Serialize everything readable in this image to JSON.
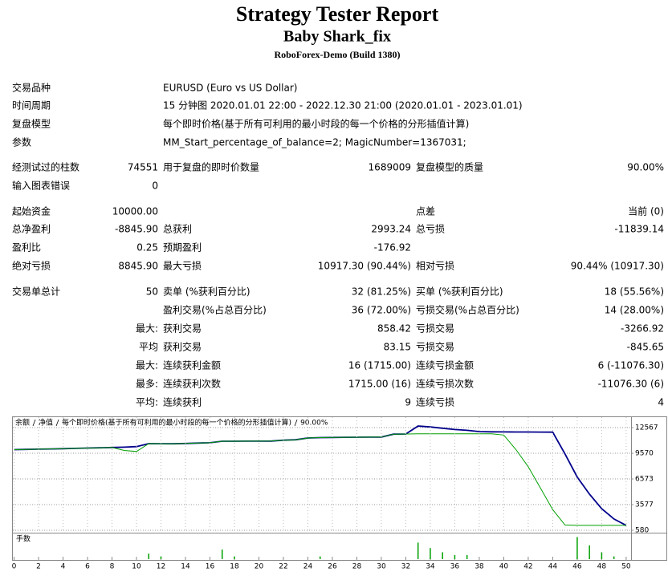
{
  "header": {
    "title": "Strategy Tester Report",
    "subtitle": "Baby Shark_fix",
    "broker": "RoboForex-Demo (Build 1380)"
  },
  "settings": [
    [
      "交易品种",
      "EURUSD (Euro vs US Dollar)"
    ],
    [
      "时间周期",
      "15 分钟图 2020.01.01 22:00 - 2022.12.30 21:00 (2020.01.01 - 2023.01.01)"
    ],
    [
      "复盘模型",
      "每个即时价格(基于所有可利用的最小时段的每一个价格的分形插值计算)"
    ],
    [
      "参数",
      "MM_Start_percentage_of_balance=2; MagicNumber=1367031;"
    ]
  ],
  "stats": [
    [
      "经测试过的柱数",
      "74551",
      "用于复盘的即时价数量",
      "1689009",
      "复盘模型的质量",
      "90.00%"
    ],
    [
      "输入图表错误",
      "0",
      null,
      null,
      null,
      null
    ],
    [
      "起始资金",
      "10000.00",
      null,
      null,
      "点差",
      "当前 (0)"
    ],
    [
      "总净盈利",
      "-8845.90",
      "总获利",
      "2993.24",
      "总亏损",
      "-11839.14"
    ],
    [
      "盈利比",
      "0.25",
      "预期盈利",
      "-176.92",
      null,
      null
    ],
    [
      "绝对亏损",
      "8845.90",
      "最大亏损",
      "10917.30 (90.44%)",
      "相对亏损",
      "90.44% (10917.30)"
    ],
    [
      "交易单总计",
      "50",
      "卖单 (%获利百分比)",
      "32 (81.25%)",
      "买单 (%获利百分比)",
      "18 (55.56%)"
    ],
    [
      null,
      null,
      "盈利交易(%占总百分比)",
      "36 (72.00%)",
      "亏损交易(%占总百分比)",
      "14 (28.00%)"
    ],
    [
      null,
      "最大:",
      "获利交易",
      "858.42",
      "亏损交易",
      "-3266.92"
    ],
    [
      null,
      "平均",
      "获利交易",
      "83.15",
      "亏损交易",
      "-845.65"
    ],
    [
      null,
      "最大:",
      "连续获利金额",
      "16 (1715.00)",
      "连续亏损金额",
      "6 (-11076.30)"
    ],
    [
      null,
      "最多:",
      "连续获利次数",
      "1715.00 (16)",
      "连续亏损次数",
      "-11076.30 (6)"
    ],
    [
      null,
      "平均:",
      "连续获利",
      "9",
      "连续亏损",
      "4"
    ]
  ],
  "chart_data": [
    {
      "type": "line",
      "annotations": [
        "每个即时价格(基于所有可利用的最小时段的每一个价格的分形插值计算)",
        "90.00%"
      ],
      "x": [
        0,
        1,
        2,
        3,
        4,
        5,
        6,
        7,
        8,
        9,
        10,
        11,
        12,
        13,
        14,
        15,
        16,
        17,
        18,
        19,
        20,
        21,
        22,
        23,
        24,
        25,
        26,
        27,
        28,
        29,
        30,
        31,
        32,
        33,
        34,
        35,
        36,
        37,
        38,
        39,
        40,
        41,
        42,
        43,
        44,
        45,
        46,
        47,
        48,
        49,
        50
      ],
      "xlim": [
        -0.1,
        50.4
      ],
      "ylim": [
        300,
        13790
      ],
      "yticks": [
        12567,
        9570,
        6573,
        3577,
        580
      ],
      "grid": true,
      "series": [
        {
          "name": "余额",
          "color": "#00008b",
          "values": [
            10000,
            10020,
            10050,
            10080,
            10110,
            10150,
            10180,
            10210,
            10250,
            10290,
            10350,
            10700,
            10690,
            10680,
            10720,
            10760,
            10800,
            10980,
            10980,
            10990,
            10990,
            11000,
            11100,
            11150,
            11350,
            11400,
            11420,
            11440,
            11450,
            11460,
            11470,
            11800,
            11820,
            12750,
            12650,
            12500,
            12350,
            12250,
            12100,
            12080,
            12070,
            12060,
            12060,
            12050,
            12040,
            9500,
            6800,
            4800,
            3100,
            1900,
            1154
          ]
        },
        {
          "name": "净值",
          "color": "#00a000",
          "values": [
            10000,
            10020,
            10050,
            10080,
            10110,
            10150,
            10180,
            10210,
            10250,
            9900,
            9780,
            10700,
            10690,
            10680,
            10720,
            10760,
            10800,
            10980,
            10980,
            10990,
            10990,
            11000,
            11100,
            11150,
            11350,
            11400,
            11420,
            11440,
            11450,
            11460,
            11470,
            11800,
            11820,
            11850,
            11850,
            11850,
            11850,
            11850,
            11850,
            11850,
            11700,
            10000,
            8000,
            5500,
            3000,
            1200,
            1154,
            1154,
            1154,
            1154,
            1154
          ]
        }
      ]
    },
    {
      "type": "bar",
      "title": "手数",
      "color": "#00a000",
      "x": [
        11,
        12,
        17,
        18,
        25,
        33,
        34,
        35,
        36,
        37,
        46,
        47,
        48,
        49
      ],
      "values": [
        0.04,
        0.02,
        0.07,
        0.02,
        0.02,
        0.12,
        0.08,
        0.05,
        0.03,
        0.03,
        0.16,
        0.1,
        0.05,
        0.02
      ],
      "xlim": [
        -0.1,
        50.4
      ],
      "ylim": [
        0,
        0.18
      ],
      "xticks": [
        0,
        2,
        4,
        6,
        8,
        10,
        12,
        14,
        16,
        18,
        20,
        22,
        24,
        26,
        28,
        30,
        32,
        34,
        36,
        38,
        40,
        42,
        44,
        46,
        48,
        50
      ]
    }
  ]
}
